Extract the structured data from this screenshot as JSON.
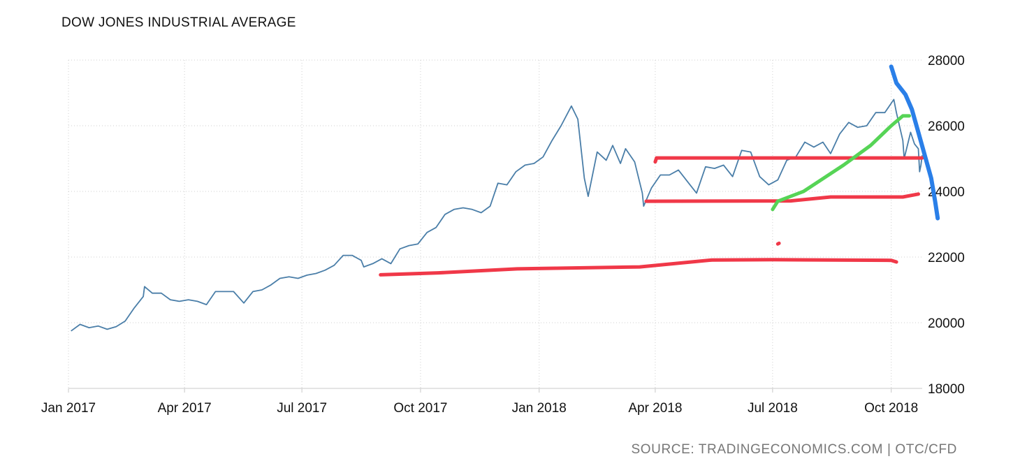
{
  "chart_data": {
    "type": "line",
    "title": "DOW JONES INDUSTRIAL AVERAGE",
    "source": "SOURCE: TRADINGECONOMICS.COM | OTC/CFD",
    "xlabel": "",
    "ylabel": "",
    "x_tick_labels": [
      "Jan 2017",
      "Apr 2017",
      "Jul 2017",
      "Oct 2017",
      "Jan 2018",
      "Apr 2018",
      "Jul 2018",
      "Oct 2018"
    ],
    "x_tick_dates": [
      "2017-01-01",
      "2017-04-01",
      "2017-07-01",
      "2017-10-01",
      "2018-01-01",
      "2018-04-01",
      "2018-07-01",
      "2018-10-01"
    ],
    "xlim": [
      "2017-01-01",
      "2018-10-25"
    ],
    "ylim": [
      18000,
      28000
    ],
    "y_ticks": [
      18000,
      20000,
      22000,
      24000,
      26000,
      28000
    ],
    "y_axis_position": "right",
    "grid": true,
    "series": [
      {
        "color": "#4a7ea8",
        "points": [
          [
            "2017-01-03",
            19750
          ],
          [
            "2017-01-10",
            19950
          ],
          [
            "2017-01-17",
            19850
          ],
          [
            "2017-01-24",
            19900
          ],
          [
            "2017-01-31",
            19800
          ],
          [
            "2017-02-07",
            19880
          ],
          [
            "2017-02-14",
            20050
          ],
          [
            "2017-02-21",
            20450
          ],
          [
            "2017-02-28",
            20800
          ],
          [
            "2017-03-01",
            21100
          ],
          [
            "2017-03-07",
            20900
          ],
          [
            "2017-03-14",
            20900
          ],
          [
            "2017-03-21",
            20700
          ],
          [
            "2017-03-28",
            20650
          ],
          [
            "2017-04-04",
            20700
          ],
          [
            "2017-04-11",
            20650
          ],
          [
            "2017-04-18",
            20550
          ],
          [
            "2017-04-25",
            20950
          ],
          [
            "2017-05-02",
            20950
          ],
          [
            "2017-05-09",
            20950
          ],
          [
            "2017-05-17",
            20600
          ],
          [
            "2017-05-24",
            20950
          ],
          [
            "2017-05-31",
            21000
          ],
          [
            "2017-06-07",
            21150
          ],
          [
            "2017-06-14",
            21350
          ],
          [
            "2017-06-21",
            21400
          ],
          [
            "2017-06-28",
            21350
          ],
          [
            "2017-07-05",
            21450
          ],
          [
            "2017-07-12",
            21500
          ],
          [
            "2017-07-19",
            21600
          ],
          [
            "2017-07-26",
            21750
          ],
          [
            "2017-08-02",
            22050
          ],
          [
            "2017-08-09",
            22050
          ],
          [
            "2017-08-16",
            21900
          ],
          [
            "2017-08-18",
            21700
          ],
          [
            "2017-08-25",
            21800
          ],
          [
            "2017-09-01",
            21950
          ],
          [
            "2017-09-08",
            21800
          ],
          [
            "2017-09-15",
            22250
          ],
          [
            "2017-09-22",
            22350
          ],
          [
            "2017-09-29",
            22400
          ],
          [
            "2017-10-06",
            22750
          ],
          [
            "2017-10-13",
            22900
          ],
          [
            "2017-10-20",
            23300
          ],
          [
            "2017-10-27",
            23450
          ],
          [
            "2017-11-03",
            23500
          ],
          [
            "2017-11-10",
            23450
          ],
          [
            "2017-11-17",
            23350
          ],
          [
            "2017-11-24",
            23550
          ],
          [
            "2017-11-30",
            24250
          ],
          [
            "2017-12-07",
            24200
          ],
          [
            "2017-12-14",
            24600
          ],
          [
            "2017-12-21",
            24800
          ],
          [
            "2017-12-28",
            24850
          ],
          [
            "2018-01-04",
            25050
          ],
          [
            "2018-01-11",
            25550
          ],
          [
            "2018-01-18",
            26000
          ],
          [
            "2018-01-26",
            26600
          ],
          [
            "2018-01-31",
            26200
          ],
          [
            "2018-02-05",
            24400
          ],
          [
            "2018-02-08",
            23850
          ],
          [
            "2018-02-15",
            25200
          ],
          [
            "2018-02-22",
            24950
          ],
          [
            "2018-02-27",
            25400
          ],
          [
            "2018-03-05",
            24850
          ],
          [
            "2018-03-09",
            25300
          ],
          [
            "2018-03-16",
            24900
          ],
          [
            "2018-03-22",
            23950
          ],
          [
            "2018-03-23",
            23550
          ],
          [
            "2018-03-29",
            24100
          ],
          [
            "2018-04-05",
            24500
          ],
          [
            "2018-04-12",
            24500
          ],
          [
            "2018-04-19",
            24650
          ],
          [
            "2018-04-26",
            24300
          ],
          [
            "2018-05-03",
            23950
          ],
          [
            "2018-05-10",
            24750
          ],
          [
            "2018-05-17",
            24700
          ],
          [
            "2018-05-24",
            24800
          ],
          [
            "2018-05-31",
            24450
          ],
          [
            "2018-06-07",
            25250
          ],
          [
            "2018-06-14",
            25200
          ],
          [
            "2018-06-21",
            24450
          ],
          [
            "2018-06-28",
            24200
          ],
          [
            "2018-07-05",
            24350
          ],
          [
            "2018-07-12",
            24950
          ],
          [
            "2018-07-19",
            25050
          ],
          [
            "2018-07-26",
            25500
          ],
          [
            "2018-08-02",
            25350
          ],
          [
            "2018-08-09",
            25500
          ],
          [
            "2018-08-15",
            25150
          ],
          [
            "2018-08-22",
            25750
          ],
          [
            "2018-08-29",
            26100
          ],
          [
            "2018-09-05",
            25950
          ],
          [
            "2018-09-12",
            26000
          ],
          [
            "2018-09-19",
            26400
          ],
          [
            "2018-09-26",
            26400
          ],
          [
            "2018-10-03",
            26800
          ],
          [
            "2018-10-05",
            26400
          ],
          [
            "2018-10-10",
            25550
          ],
          [
            "2018-10-11",
            25000
          ],
          [
            "2018-10-16",
            25800
          ],
          [
            "2018-10-19",
            25450
          ],
          [
            "2018-10-22",
            25300
          ],
          [
            "2018-10-23",
            24600
          ],
          [
            "2018-10-24",
            24800
          ],
          [
            "2018-10-25",
            25100
          ]
        ]
      }
    ],
    "annotations": [
      {
        "type": "freehand",
        "color": "#f03848",
        "points": [
          [
            "2017-08-31",
            21460
          ],
          [
            "2017-10-15",
            21520
          ],
          [
            "2017-12-15",
            21640
          ],
          [
            "2018-03-20",
            21700
          ],
          [
            "2018-05-15",
            21910
          ],
          [
            "2018-07-01",
            21920
          ],
          [
            "2018-10-01",
            21900
          ],
          [
            "2018-10-05",
            21850
          ]
        ]
      },
      {
        "type": "freehand",
        "color": "#f03848",
        "points": [
          [
            "2018-03-25",
            23700
          ],
          [
            "2018-07-15",
            23710
          ],
          [
            "2018-08-15",
            23830
          ],
          [
            "2018-10-10",
            23830
          ],
          [
            "2018-10-22",
            23920
          ]
        ]
      },
      {
        "type": "freehand",
        "color": "#f03848",
        "points": [
          [
            "2018-04-01",
            24900
          ],
          [
            "2018-04-02",
            25020
          ],
          [
            "2018-10-25",
            25020
          ]
        ]
      },
      {
        "type": "freehand",
        "color": "#f03848",
        "points": [
          [
            "2018-07-05",
            22400
          ],
          [
            "2018-07-06",
            22420
          ]
        ]
      },
      {
        "type": "freehand",
        "color": "#56d456",
        "points": [
          [
            "2018-07-01",
            23450
          ],
          [
            "2018-07-05",
            23700
          ],
          [
            "2018-07-25",
            24000
          ],
          [
            "2018-08-25",
            24800
          ],
          [
            "2018-09-15",
            25400
          ],
          [
            "2018-10-01",
            26000
          ],
          [
            "2018-10-10",
            26300
          ],
          [
            "2018-10-15",
            26300
          ]
        ]
      },
      {
        "type": "freehand",
        "color": "#2a7fe8",
        "points": [
          [
            "2018-10-01",
            27800
          ],
          [
            "2018-10-05",
            27300
          ],
          [
            "2018-10-12",
            26950
          ],
          [
            "2018-10-17",
            26500
          ],
          [
            "2018-10-22",
            25800
          ],
          [
            "2018-10-27",
            25100
          ],
          [
            "2018-11-01",
            24400
          ],
          [
            "2018-11-04",
            23700
          ],
          [
            "2018-11-06",
            23180
          ]
        ]
      }
    ]
  }
}
